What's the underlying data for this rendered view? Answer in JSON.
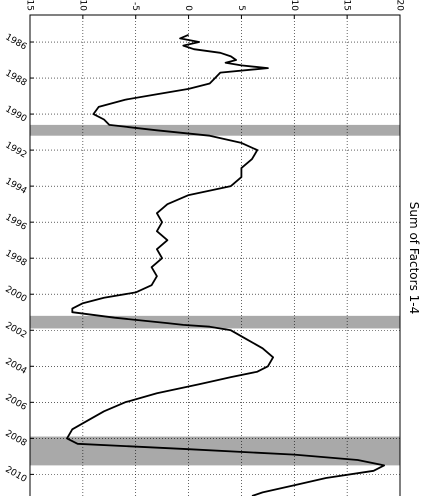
{
  "chart_data": {
    "type": "line",
    "title": "Sum of Factors 1-4",
    "x": [
      1985.6,
      1985.8,
      1986,
      1986.2,
      1986.4,
      1986.6,
      1986.8,
      1987,
      1987.15,
      1987.3,
      1987.45,
      1987.7,
      1988,
      1988.3,
      1988.6,
      1988.9,
      1989.2,
      1989.6,
      1990,
      1990.3,
      1990.6,
      1990.9,
      1991.2,
      1991.6,
      1992,
      1992.5,
      1993,
      1993.5,
      1994,
      1994.5,
      1995,
      1995.5,
      1996,
      1996.5,
      1997,
      1997.5,
      1998,
      1998.5,
      1999,
      1999.5,
      1999.9,
      2000.2,
      2000.5,
      2000.8,
      2001,
      2001.3,
      2001.6,
      2001.7,
      2001.8,
      2002,
      2002.5,
      2003,
      2003.5,
      2004,
      2004.3,
      2004.6,
      2005,
      2005.5,
      2006,
      2006.5,
      2007,
      2007.5,
      2008,
      2008.3,
      2008.6,
      2008.9,
      2009.2,
      2009.5,
      2009.8,
      2010.2,
      2010.6,
      2011,
      2011.2
    ],
    "values": [
      0,
      -0.8,
      1,
      -0.5,
      0.5,
      3,
      4,
      4.5,
      3.5,
      5,
      7.5,
      3,
      2.5,
      2,
      0,
      -3,
      -6,
      -8.5,
      -9,
      -8,
      -7.5,
      -3,
      2,
      5,
      6.5,
      6,
      5,
      5,
      4,
      0,
      -2,
      -3,
      -2.5,
      -3,
      -2,
      -3,
      -2.5,
      -3.5,
      -3,
      -3.5,
      -5,
      -8,
      -10,
      -11,
      -11,
      -7,
      -2,
      -0.5,
      2,
      4,
      5.5,
      7,
      8,
      7.5,
      6.5,
      4,
      1,
      -3,
      -6,
      -8,
      -9.5,
      -11,
      -11.5,
      -10.5,
      0,
      10,
      16,
      18.5,
      17.5,
      13,
      10,
      7,
      6
    ],
    "color": "#000000",
    "shaded_regions": [
      [
        1990.6,
        1991.2
      ],
      [
        2001.2,
        2001.9
      ],
      [
        2007.9,
        2009.5
      ]
    ],
    "shade_color": "#a9a9a9",
    "xlim": [
      1984.5,
      2011.2
    ],
    "xticks": [
      1986,
      1988,
      1990,
      1992,
      1994,
      1996,
      1998,
      2000,
      2002,
      2004,
      2006,
      2008,
      2010
    ],
    "ylim": [
      -15,
      20
    ],
    "yticks": [
      -15,
      -10,
      -5,
      0,
      5,
      10,
      15,
      20
    ],
    "grid": true
  }
}
